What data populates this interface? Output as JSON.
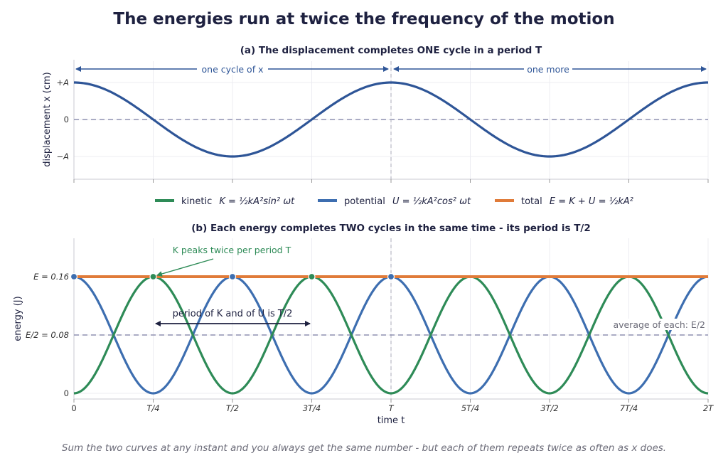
{
  "title": "The energies run at twice the frequency of the motion",
  "footnote": "Sum the two curves at any instant and you always get the same number - but each of them repeats twice as often as x does.",
  "colors": {
    "displacement": "#2e5597",
    "kinetic": "#2e8b57",
    "potential": "#3d6eb0",
    "total": "#e07b39",
    "ink": "#1e2140",
    "muted": "#6b6b78",
    "dash": "#8e90b0"
  },
  "legend": {
    "kinetic": {
      "name": "kinetic",
      "formula": "K = ½kA²sin² ωt"
    },
    "potential": {
      "name": "potential",
      "formula": "U = ½kA²cos² ωt"
    },
    "total": {
      "name": "total",
      "formula": "E = K + U = ½kA²"
    }
  },
  "chart_data": [
    {
      "type": "line",
      "panel": "a",
      "title": "(a)  The displacement completes ONE cycle in a period T",
      "xlabel": "",
      "ylabel": "displacement x (cm)",
      "yticks": [
        "+A",
        "0",
        "−A"
      ],
      "xlim": [
        0,
        2
      ],
      "x_units": "periods T",
      "series": [
        {
          "x": [
            0,
            0.25,
            0.5,
            0.75,
            1,
            1.25,
            1.5,
            1.75,
            2
          ],
          "values": [
            1,
            0,
            -1,
            0,
            1,
            0,
            -1,
            0,
            1
          ],
          "function": "A·cos(ωt)"
        }
      ],
      "annotations": [
        "one cycle of x",
        "one more"
      ],
      "grid": true
    },
    {
      "type": "line",
      "panel": "b",
      "title": "(b)  Each energy completes TWO cycles in the same time - its period is T/2",
      "xlabel": "time t",
      "ylabel": "energy (J)",
      "xticks": [
        "0",
        "T/4",
        "T/2",
        "3T/4",
        "T",
        "5T/4",
        "3T/2",
        "7T/4",
        "2T"
      ],
      "yticks": [
        "E = 0.16",
        "E/2 = 0.08",
        "0"
      ],
      "ylim": [
        -0.01,
        0.205
      ],
      "xlim": [
        0,
        2
      ],
      "series": [
        {
          "name": "kinetic",
          "x": [
            0,
            0.25,
            0.5,
            0.75,
            1,
            1.25,
            1.5,
            1.75,
            2
          ],
          "values": [
            0,
            0.16,
            0,
            0.16,
            0,
            0.16,
            0,
            0.16,
            0
          ]
        },
        {
          "name": "potential",
          "x": [
            0,
            0.25,
            0.5,
            0.75,
            1,
            1.25,
            1.5,
            1.75,
            2
          ],
          "values": [
            0.16,
            0,
            0.16,
            0,
            0.16,
            0,
            0.16,
            0,
            0.16
          ]
        },
        {
          "name": "total",
          "x": [
            0,
            2
          ],
          "values": [
            0.16,
            0.16
          ]
        }
      ],
      "reference_line": {
        "y": 0.08,
        "label": "average of each: E/2"
      },
      "markers": {
        "kinetic_peaks": [
          0.25,
          0.75
        ],
        "potential_peaks": [
          0,
          0.5,
          1
        ]
      },
      "annotations": [
        "K peaks twice per period T",
        "period of K and of U is T/2"
      ],
      "grid": true
    }
  ]
}
